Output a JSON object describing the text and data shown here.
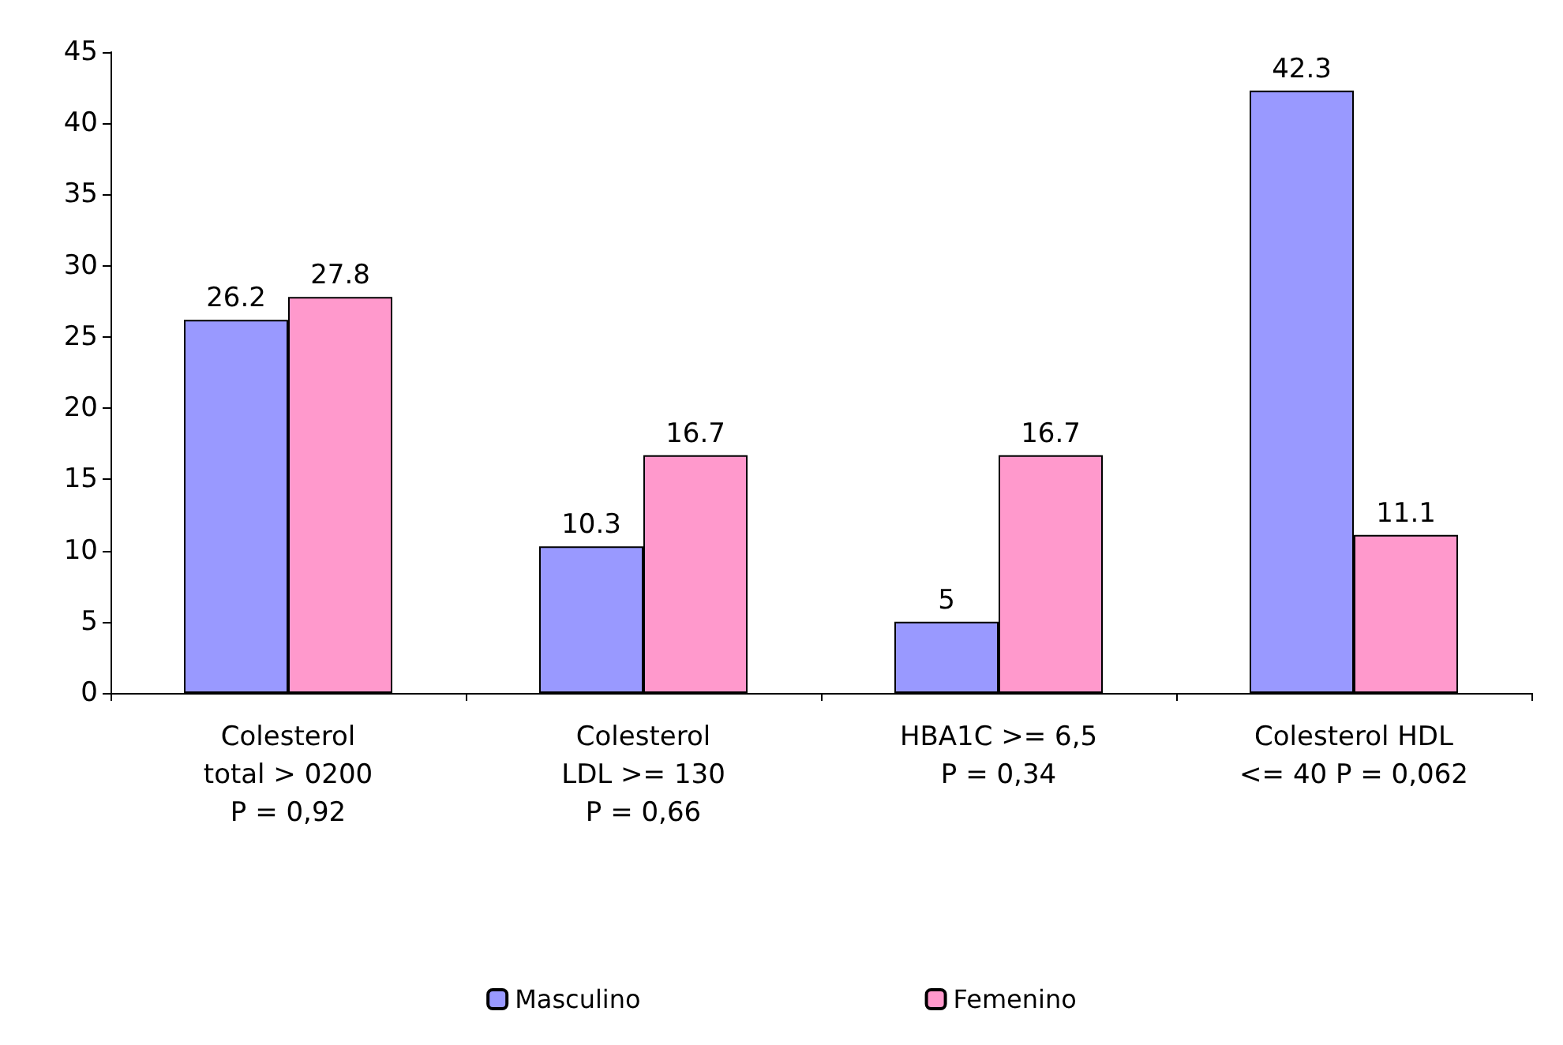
{
  "chart_data": {
    "type": "bar",
    "categories": [
      "Colesterol\ntotal > 0200\nP = 0,92",
      "Colesterol\nLDL >= 130\nP = 0,66",
      "HBA1C >= 6,5\nP = 0,34",
      "Colesterol HDL\n<= 40 P = 0,062"
    ],
    "series": [
      {
        "name": "Masculino",
        "color": "#9999ff",
        "values": [
          26.2,
          10.3,
          5,
          42.3
        ]
      },
      {
        "name": "Femenino",
        "color": "#ff99cc",
        "values": [
          27.8,
          16.7,
          16.7,
          11.1
        ]
      }
    ],
    "ylim": [
      0,
      45
    ],
    "yticks": [
      0,
      5,
      10,
      15,
      20,
      25,
      30,
      35,
      40,
      45
    ],
    "grid": false,
    "legend": "bottom",
    "data_labels": true
  }
}
